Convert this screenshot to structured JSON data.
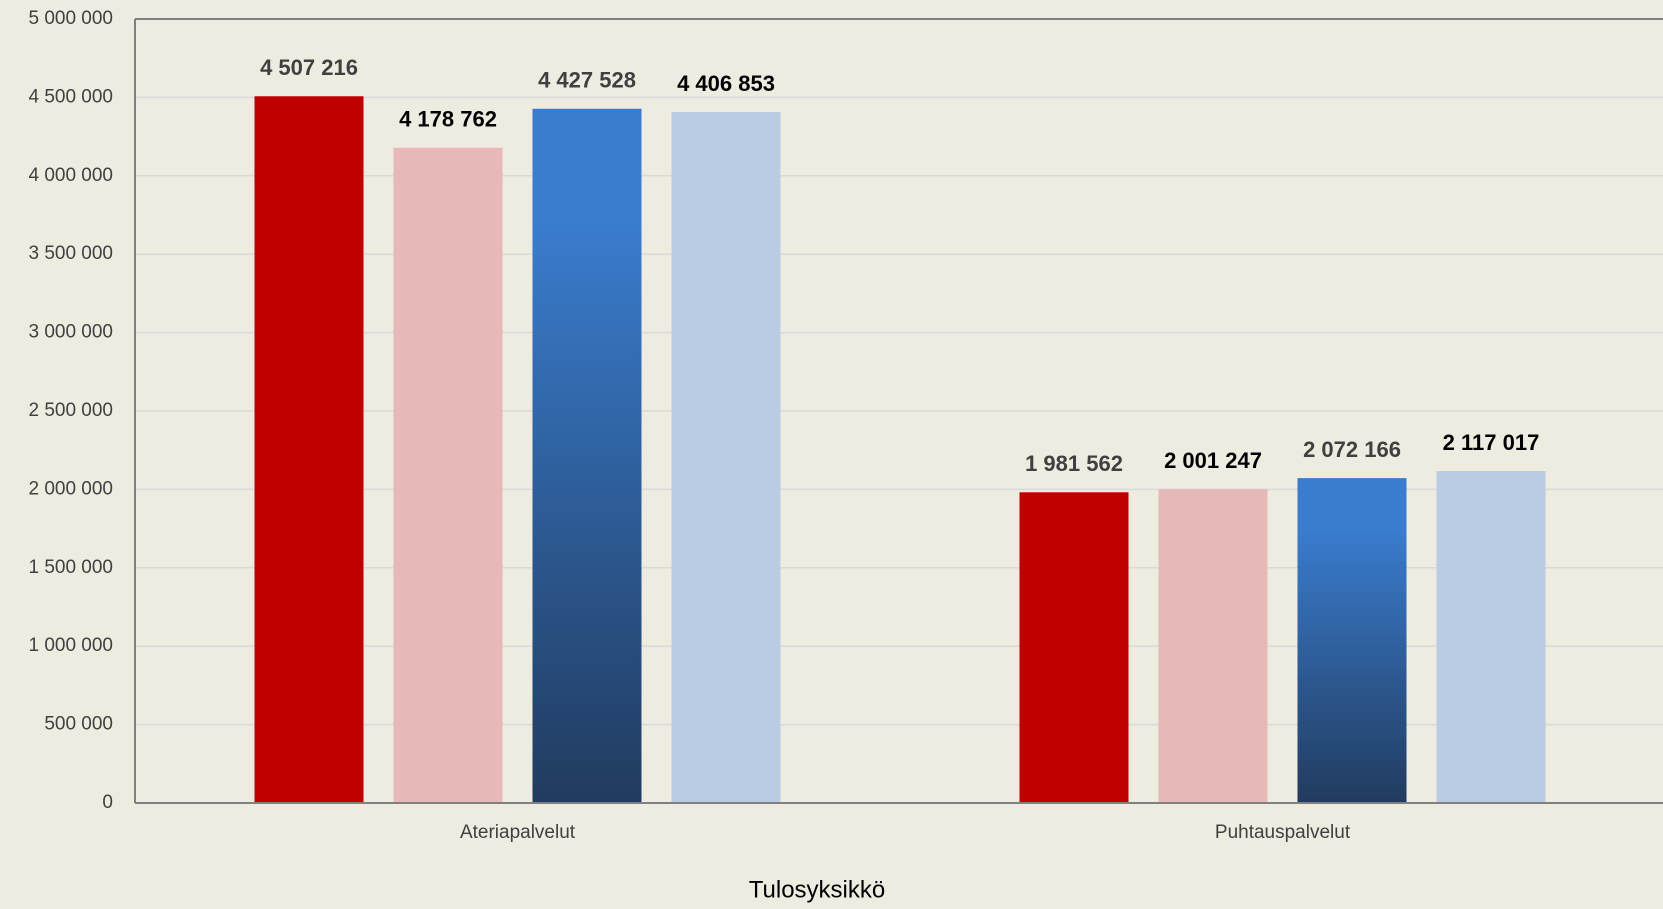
{
  "chart_data": {
    "type": "bar",
    "x_label": "Tulosyksikkö",
    "categories": [
      "Ateriapalvelut",
      "Puhtauspalvelut"
    ],
    "series": [
      {
        "color": "#c00000",
        "values": [
          4507216,
          1981562
        ],
        "value_labels": [
          "4 507 216",
          "1 981 562"
        ]
      },
      {
        "color": "#e6b8b7",
        "values": [
          4178762,
          2001247
        ],
        "value_labels": [
          "4 178 762",
          "2 001 247"
        ]
      },
      {
        "color": "#3a7dcf",
        "values": [
          4427528,
          2072166
        ],
        "value_labels": [
          "4 427 528",
          "2 072 166"
        ]
      },
      {
        "color": "#b9cce4",
        "values": [
          4406853,
          2117017
        ],
        "value_labels": [
          "4 406 853",
          "2 117 017"
        ]
      }
    ],
    "ylim": [
      0,
      5000000
    ],
    "yticks": [
      0,
      {
        "value": 500000,
        "label": "500 000"
      },
      {
        "value": 1000000,
        "label": "1 000 000"
      },
      {
        "value": 1500000,
        "label": "1 500 000"
      },
      {
        "value": 2000000,
        "label": "2 000 000"
      },
      {
        "value": 2500000,
        "label": "2 500 000"
      },
      {
        "value": 3000000,
        "label": "3 000 000"
      },
      {
        "value": 3500000,
        "label": "3 500 000"
      },
      {
        "value": 4000000,
        "label": "4 000 000"
      },
      {
        "value": 4500000,
        "label": "4 500 000"
      },
      {
        "value": 5000000,
        "label": "5 000 000"
      }
    ],
    "grid": true
  }
}
